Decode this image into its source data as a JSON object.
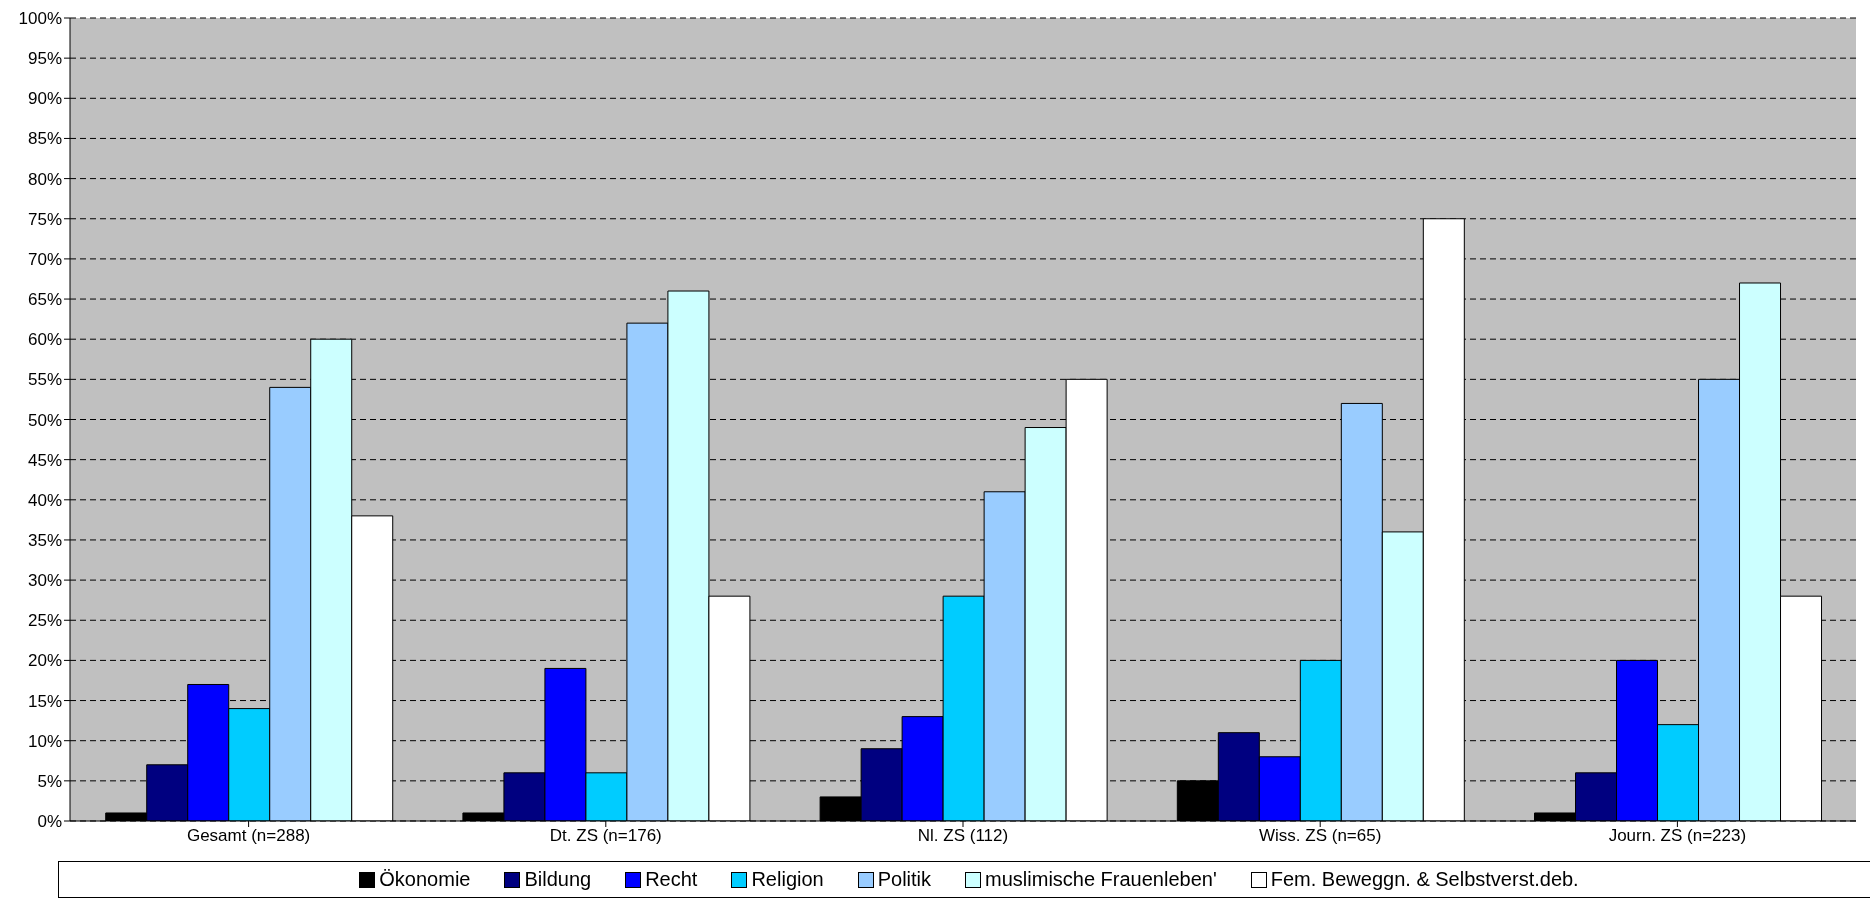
{
  "chart_data": {
    "type": "bar",
    "categories": [
      "Gesamt (n=288)",
      "Dt. ZS (n=176)",
      "Nl. ZS (112)",
      "Wiss. ZS (n=65)",
      "Journ. ZS (n=223)"
    ],
    "series": [
      {
        "name": "Ökonomie",
        "color": "#000000",
        "values": [
          1,
          1,
          3,
          5,
          1
        ]
      },
      {
        "name": "Bildung",
        "color": "#000080",
        "values": [
          7,
          6,
          9,
          11,
          6
        ]
      },
      {
        "name": "Recht",
        "color": "#0000ff",
        "values": [
          17,
          19,
          13,
          8,
          20
        ]
      },
      {
        "name": "Religion",
        "color": "#00ccff",
        "values": [
          14,
          6,
          28,
          20,
          12
        ]
      },
      {
        "name": "Politik",
        "color": "#99ccff",
        "values": [
          54,
          62,
          41,
          52,
          55
        ]
      },
      {
        "name": "muslimische Frauenleben'",
        "color": "#ccffff",
        "values": [
          60,
          66,
          49,
          36,
          67
        ]
      },
      {
        "name": "Fem. Beweggn. & Selbstverst.deb.",
        "color": "#ffffff",
        "values": [
          38,
          28,
          55,
          75,
          28
        ]
      }
    ],
    "ylim": [
      0,
      100
    ],
    "yticks": [
      {
        "value": 0,
        "label": "0%"
      },
      {
        "value": 5,
        "label": "5%"
      },
      {
        "value": 10,
        "label": "10%"
      },
      {
        "value": 15,
        "label": "15%"
      },
      {
        "value": 20,
        "label": "20%"
      },
      {
        "value": 25,
        "label": "25%"
      },
      {
        "value": 30,
        "label": "30%"
      },
      {
        "value": 35,
        "label": "35%"
      },
      {
        "value": 40,
        "label": "40%"
      },
      {
        "value": 45,
        "label": "45%"
      },
      {
        "value": 50,
        "label": "50%"
      },
      {
        "value": 55,
        "label": "55%"
      },
      {
        "value": 60,
        "label": "60%"
      },
      {
        "value": 65,
        "label": "65%"
      },
      {
        "value": 70,
        "label": "70%"
      },
      {
        "value": 75,
        "label": "75%"
      },
      {
        "value": 80,
        "label": "80%"
      },
      {
        "value": 85,
        "label": "85%"
      },
      {
        "value": 90,
        "label": "90%"
      },
      {
        "value": 95,
        "label": "95%"
      },
      {
        "value": 100,
        "label": "100%"
      }
    ],
    "grid": "y",
    "legend": "bottom"
  }
}
